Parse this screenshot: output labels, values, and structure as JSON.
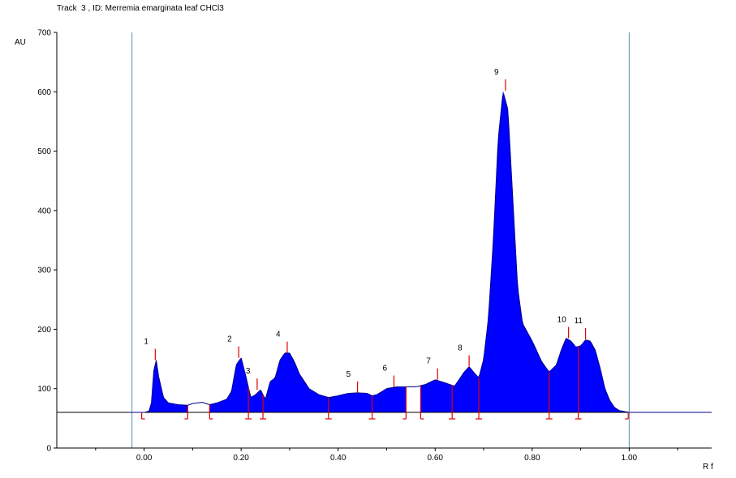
{
  "header": {
    "title": "Track  3 , ID: Merremia emarginata leaf CHCl3"
  },
  "chart_data": {
    "type": "area",
    "title": "Track  3 , ID: Merremia emarginata leaf CHCl3",
    "ylabel": "AU",
    "xlabel": "R f",
    "xlim": [
      -0.18,
      1.17
    ],
    "ylim": [
      0,
      700
    ],
    "baseline": 60,
    "front_lines_x": [
      -0.025,
      1.0
    ],
    "y_ticks": [
      0,
      100,
      200,
      300,
      400,
      500,
      600,
      700
    ],
    "y_tick_labels": [
      "0",
      "100",
      "200",
      "300",
      "400",
      "500",
      "600",
      "700"
    ],
    "x_ticks": [
      0.0,
      0.2,
      0.4,
      0.6,
      0.8,
      1.0
    ],
    "x_tick_labels": [
      "0.00",
      "0.20",
      "0.40",
      "0.60",
      "0.80",
      "1.00"
    ],
    "fill_color": "#0000ff",
    "marker_color": "#e00000",
    "profile_x": [
      -0.03,
      0.0,
      0.01,
      0.015,
      0.02,
      0.025,
      0.03,
      0.04,
      0.05,
      0.07,
      0.09,
      0.1,
      0.12,
      0.135,
      0.15,
      0.17,
      0.18,
      0.19,
      0.2,
      0.21,
      0.22,
      0.23,
      0.24,
      0.25,
      0.26,
      0.27,
      0.28,
      0.29,
      0.3,
      0.31,
      0.32,
      0.34,
      0.36,
      0.38,
      0.4,
      0.42,
      0.44,
      0.46,
      0.47,
      0.48,
      0.5,
      0.52,
      0.54,
      0.56,
      0.58,
      0.6,
      0.62,
      0.64,
      0.66,
      0.67,
      0.68,
      0.69,
      0.7,
      0.71,
      0.72,
      0.73,
      0.74,
      0.75,
      0.76,
      0.77,
      0.78,
      0.8,
      0.82,
      0.835,
      0.85,
      0.86,
      0.87,
      0.88,
      0.89,
      0.9,
      0.91,
      0.92,
      0.93,
      0.94,
      0.95,
      0.96,
      0.97,
      0.98,
      1.0,
      1.02,
      1.05,
      1.17
    ],
    "profile_y": [
      60,
      60,
      62,
      75,
      130,
      148,
      120,
      85,
      76,
      73,
      72,
      75,
      77,
      73,
      76,
      82,
      95,
      140,
      152,
      120,
      85,
      90,
      98,
      82,
      112,
      118,
      148,
      160,
      160,
      145,
      125,
      100,
      90,
      85,
      88,
      92,
      93,
      92,
      88,
      90,
      100,
      103,
      103,
      103,
      107,
      115,
      110,
      104,
      128,
      137,
      127,
      118,
      150,
      220,
      350,
      520,
      600,
      570,
      420,
      270,
      210,
      180,
      145,
      128,
      140,
      165,
      185,
      180,
      170,
      172,
      182,
      180,
      165,
      135,
      100,
      80,
      68,
      63,
      60,
      60,
      60,
      60
    ],
    "segments": [
      [
        -0.005,
        0.09
      ],
      [
        0.135,
        0.215
      ],
      [
        0.215,
        0.245
      ],
      [
        0.245,
        0.38
      ],
      [
        0.38,
        0.47
      ],
      [
        0.47,
        0.54
      ],
      [
        0.57,
        0.635
      ],
      [
        0.635,
        0.69
      ],
      [
        0.69,
        0.835
      ],
      [
        0.835,
        0.895
      ],
      [
        0.895,
        0.998
      ]
    ],
    "peaks": [
      {
        "label": "1",
        "rf": 0.023,
        "height": 148
      },
      {
        "label": "2",
        "rf": 0.195,
        "height": 152
      },
      {
        "label": "3",
        "rf": 0.233,
        "height": 98
      },
      {
        "label": "4",
        "rf": 0.295,
        "height": 160
      },
      {
        "label": "5",
        "rf": 0.44,
        "height": 93
      },
      {
        "label": "6",
        "rf": 0.515,
        "height": 103
      },
      {
        "label": "7",
        "rf": 0.605,
        "height": 115
      },
      {
        "label": "8",
        "rf": 0.67,
        "height": 137
      },
      {
        "label": "9",
        "rf": 0.745,
        "height": 602
      },
      {
        "label": "10",
        "rf": 0.875,
        "height": 185
      },
      {
        "label": "11",
        "rf": 0.91,
        "height": 183
      }
    ],
    "boundaries": [
      {
        "rf": -0.005,
        "side": "start"
      },
      {
        "rf": 0.09,
        "side": "end"
      },
      {
        "rf": 0.135,
        "side": "start"
      },
      {
        "rf": 0.215,
        "side": "both"
      },
      {
        "rf": 0.245,
        "side": "both"
      },
      {
        "rf": 0.38,
        "side": "both"
      },
      {
        "rf": 0.47,
        "side": "both"
      },
      {
        "rf": 0.54,
        "side": "end"
      },
      {
        "rf": 0.57,
        "side": "start"
      },
      {
        "rf": 0.635,
        "side": "both"
      },
      {
        "rf": 0.69,
        "side": "both"
      },
      {
        "rf": 0.835,
        "side": "both"
      },
      {
        "rf": 0.895,
        "side": "both"
      },
      {
        "rf": 0.998,
        "side": "end"
      }
    ]
  }
}
